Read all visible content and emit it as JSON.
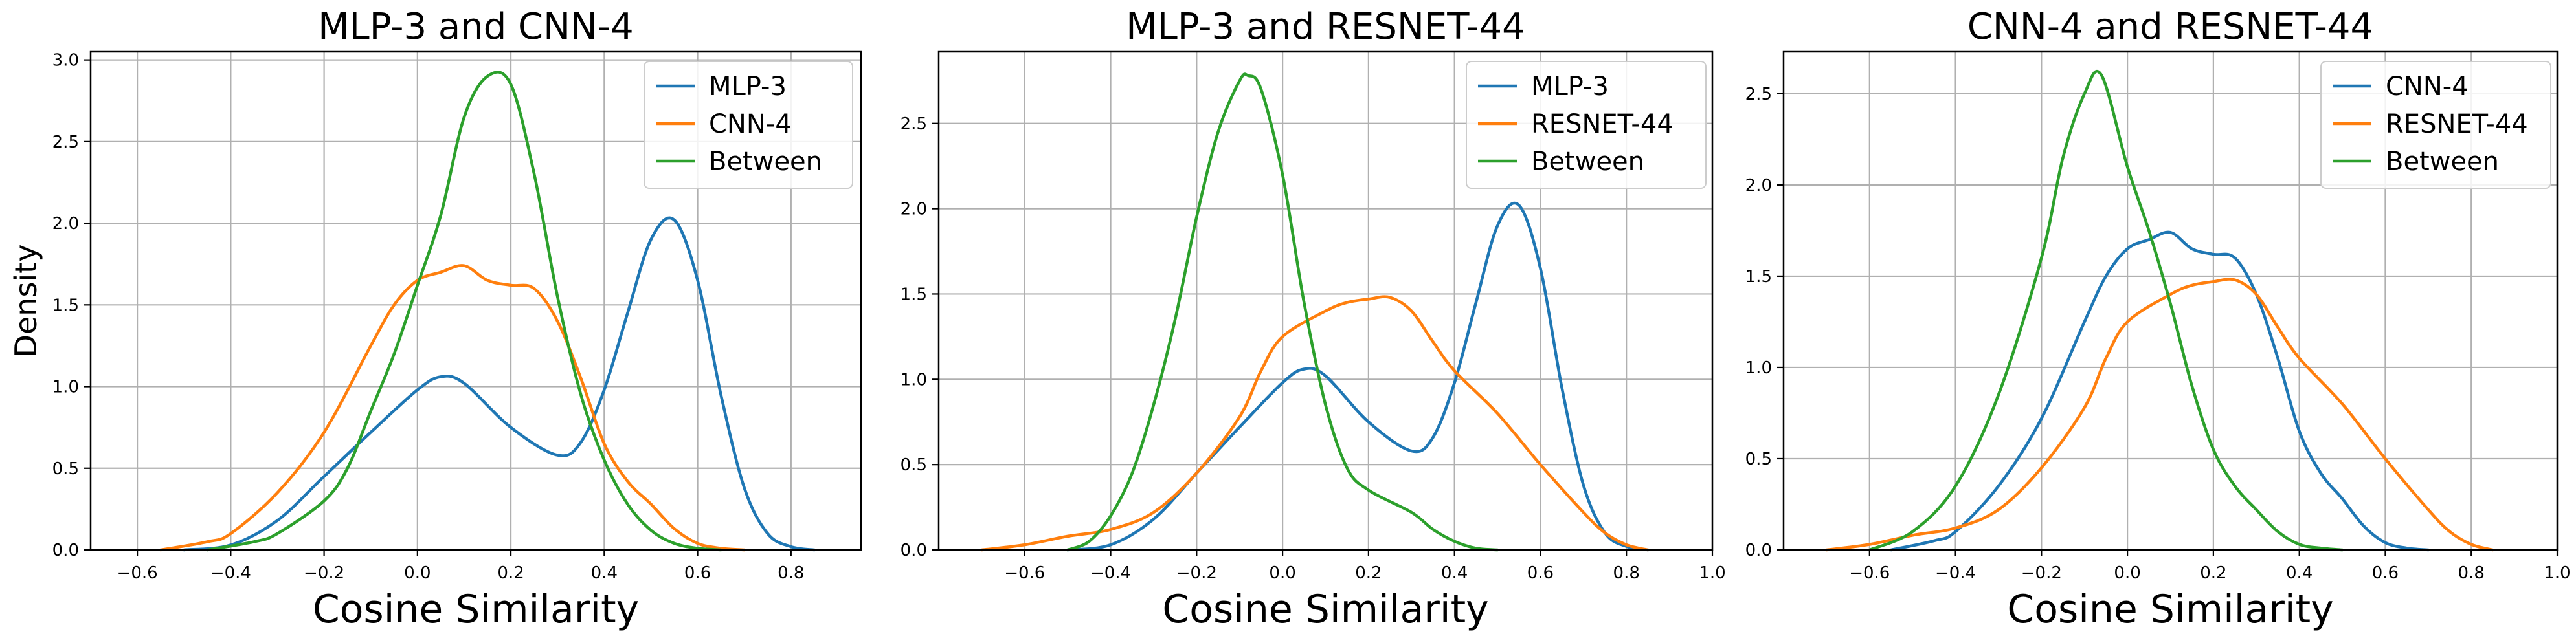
{
  "chart_data": [
    {
      "type": "line",
      "title": "MLP-3 and CNN-4",
      "xlabel": "Cosine Similarity",
      "ylabel": "Density",
      "xlim": [
        -0.7,
        0.95
      ],
      "ylim": [
        0,
        3.05
      ],
      "xticks": [
        -0.6,
        -0.4,
        -0.2,
        0.0,
        0.2,
        0.4,
        0.6,
        0.8
      ],
      "xtick_labels": [
        "−0.6",
        "−0.4",
        "−0.2",
        "0.0",
        "0.2",
        "0.4",
        "0.6",
        "0.8"
      ],
      "yticks": [
        0,
        0.5,
        1.0,
        1.5,
        2.0,
        2.5,
        3.0
      ],
      "ytick_labels": [
        "0.0",
        "0.5",
        "1.0",
        "1.5",
        "2.0",
        "2.5",
        "3.0"
      ],
      "grid": true,
      "legend_position": "top-right",
      "series": [
        {
          "name": "MLP-3",
          "color": "#1f77b4",
          "x": [
            -0.5,
            -0.4,
            -0.3,
            -0.2,
            -0.1,
            0.0,
            0.05,
            0.1,
            0.2,
            0.3,
            0.35,
            0.4,
            0.45,
            0.5,
            0.55,
            0.6,
            0.65,
            0.7,
            0.75,
            0.8,
            0.85
          ],
          "y": [
            0.0,
            0.03,
            0.18,
            0.45,
            0.72,
            0.98,
            1.06,
            1.02,
            0.75,
            0.58,
            0.66,
            0.98,
            1.45,
            1.9,
            2.02,
            1.65,
            0.95,
            0.38,
            0.1,
            0.02,
            0.0
          ]
        },
        {
          "name": "CNN-4",
          "color": "#ff7f0e",
          "x": [
            -0.55,
            -0.45,
            -0.4,
            -0.3,
            -0.2,
            -0.1,
            -0.05,
            0.0,
            0.05,
            0.1,
            0.15,
            0.2,
            0.25,
            0.3,
            0.35,
            0.4,
            0.45,
            0.5,
            0.55,
            0.6,
            0.65,
            0.7
          ],
          "y": [
            0.0,
            0.05,
            0.1,
            0.35,
            0.72,
            1.25,
            1.5,
            1.65,
            1.7,
            1.74,
            1.65,
            1.62,
            1.6,
            1.4,
            1.05,
            0.65,
            0.42,
            0.28,
            0.13,
            0.04,
            0.01,
            0.0
          ]
        },
        {
          "name": "Between",
          "color": "#2ca02c",
          "x": [
            -0.45,
            -0.35,
            -0.3,
            -0.2,
            -0.15,
            -0.1,
            -0.05,
            0.0,
            0.05,
            0.1,
            0.15,
            0.2,
            0.25,
            0.3,
            0.35,
            0.4,
            0.45,
            0.5,
            0.55,
            0.6,
            0.65
          ],
          "y": [
            0.0,
            0.05,
            0.1,
            0.3,
            0.5,
            0.85,
            1.2,
            1.62,
            2.05,
            2.65,
            2.9,
            2.85,
            2.3,
            1.55,
            0.95,
            0.55,
            0.28,
            0.12,
            0.04,
            0.01,
            0.0
          ]
        }
      ]
    },
    {
      "type": "line",
      "title": "MLP-3 and RESNET-44",
      "xlabel": "Cosine Similarity",
      "ylabel": "",
      "xlim": [
        -0.8,
        1.0
      ],
      "ylim": [
        0,
        2.92
      ],
      "xticks": [
        -0.6,
        -0.4,
        -0.2,
        0.0,
        0.2,
        0.4,
        0.6,
        0.8,
        1.0
      ],
      "xtick_labels": [
        "−0.6",
        "−0.4",
        "−0.2",
        "0.0",
        "0.2",
        "0.4",
        "0.6",
        "0.8",
        "1.0"
      ],
      "yticks": [
        0,
        0.5,
        1.0,
        1.5,
        2.0,
        2.5
      ],
      "ytick_labels": [
        "0.0",
        "0.5",
        "1.0",
        "1.5",
        "2.0",
        "2.5"
      ],
      "grid": true,
      "legend_position": "top-right",
      "series": [
        {
          "name": "MLP-3",
          "color": "#1f77b4",
          "x": [
            -0.5,
            -0.4,
            -0.3,
            -0.2,
            -0.1,
            0.0,
            0.05,
            0.1,
            0.2,
            0.3,
            0.35,
            0.4,
            0.45,
            0.5,
            0.55,
            0.6,
            0.65,
            0.7,
            0.75,
            0.8,
            0.85
          ],
          "y": [
            0.0,
            0.03,
            0.18,
            0.45,
            0.72,
            0.98,
            1.06,
            1.02,
            0.75,
            0.58,
            0.66,
            0.98,
            1.45,
            1.9,
            2.02,
            1.65,
            0.95,
            0.38,
            0.1,
            0.02,
            0.0
          ]
        },
        {
          "name": "RESNET-44",
          "color": "#ff7f0e",
          "x": [
            -0.7,
            -0.6,
            -0.5,
            -0.4,
            -0.3,
            -0.2,
            -0.1,
            -0.05,
            0.0,
            0.1,
            0.15,
            0.2,
            0.25,
            0.3,
            0.35,
            0.4,
            0.5,
            0.6,
            0.7,
            0.75,
            0.8,
            0.85
          ],
          "y": [
            0.0,
            0.03,
            0.08,
            0.12,
            0.22,
            0.45,
            0.78,
            1.05,
            1.25,
            1.4,
            1.45,
            1.47,
            1.48,
            1.4,
            1.22,
            1.05,
            0.8,
            0.5,
            0.22,
            0.1,
            0.03,
            0.0
          ]
        },
        {
          "name": "Between",
          "color": "#2ca02c",
          "x": [
            -0.5,
            -0.45,
            -0.4,
            -0.35,
            -0.3,
            -0.25,
            -0.2,
            -0.15,
            -0.1,
            -0.08,
            -0.05,
            0.0,
            0.05,
            0.1,
            0.15,
            0.2,
            0.3,
            0.35,
            0.4,
            0.45,
            0.5
          ],
          "y": [
            0.0,
            0.05,
            0.2,
            0.45,
            0.85,
            1.35,
            1.95,
            2.45,
            2.75,
            2.78,
            2.7,
            2.2,
            1.45,
            0.85,
            0.48,
            0.35,
            0.22,
            0.12,
            0.05,
            0.01,
            0.0
          ]
        }
      ]
    },
    {
      "type": "line",
      "title": "CNN-4 and RESNET-44",
      "xlabel": "Cosine Similarity",
      "ylabel": "",
      "xlim": [
        -0.8,
        1.0
      ],
      "ylim": [
        0,
        2.73
      ],
      "xticks": [
        -0.6,
        -0.4,
        -0.2,
        0.0,
        0.2,
        0.4,
        0.6,
        0.8,
        1.0
      ],
      "xtick_labels": [
        "−0.6",
        "−0.4",
        "−0.2",
        "0.0",
        "0.2",
        "0.4",
        "0.6",
        "0.8",
        "1.0"
      ],
      "yticks": [
        0,
        0.5,
        1.0,
        1.5,
        2.0,
        2.5
      ],
      "ytick_labels": [
        "0.0",
        "0.5",
        "1.0",
        "1.5",
        "2.0",
        "2.5"
      ],
      "grid": true,
      "legend_position": "top-right",
      "series": [
        {
          "name": "CNN-4",
          "color": "#1f77b4",
          "x": [
            -0.55,
            -0.45,
            -0.4,
            -0.3,
            -0.2,
            -0.1,
            -0.05,
            0.0,
            0.05,
            0.1,
            0.15,
            0.2,
            0.25,
            0.3,
            0.35,
            0.4,
            0.45,
            0.5,
            0.55,
            0.6,
            0.65,
            0.7
          ],
          "y": [
            0.0,
            0.05,
            0.1,
            0.35,
            0.72,
            1.25,
            1.5,
            1.65,
            1.7,
            1.74,
            1.65,
            1.62,
            1.6,
            1.4,
            1.05,
            0.65,
            0.42,
            0.28,
            0.13,
            0.04,
            0.01,
            0.0
          ]
        },
        {
          "name": "RESNET-44",
          "color": "#ff7f0e",
          "x": [
            -0.7,
            -0.6,
            -0.5,
            -0.4,
            -0.3,
            -0.2,
            -0.1,
            -0.05,
            0.0,
            0.1,
            0.15,
            0.2,
            0.25,
            0.3,
            0.35,
            0.4,
            0.5,
            0.6,
            0.7,
            0.75,
            0.8,
            0.85
          ],
          "y": [
            0.0,
            0.03,
            0.08,
            0.12,
            0.22,
            0.45,
            0.78,
            1.05,
            1.25,
            1.4,
            1.45,
            1.47,
            1.48,
            1.4,
            1.22,
            1.05,
            0.8,
            0.5,
            0.22,
            0.1,
            0.03,
            0.0
          ]
        },
        {
          "name": "Between",
          "color": "#2ca02c",
          "x": [
            -0.6,
            -0.5,
            -0.4,
            -0.3,
            -0.2,
            -0.15,
            -0.1,
            -0.06,
            0.0,
            0.05,
            0.1,
            0.15,
            0.2,
            0.25,
            0.3,
            0.35,
            0.4,
            0.45,
            0.5
          ],
          "y": [
            0.0,
            0.1,
            0.35,
            0.85,
            1.6,
            2.15,
            2.5,
            2.6,
            2.1,
            1.75,
            1.35,
            0.9,
            0.55,
            0.35,
            0.22,
            0.1,
            0.03,
            0.01,
            0.0
          ]
        }
      ]
    }
  ]
}
